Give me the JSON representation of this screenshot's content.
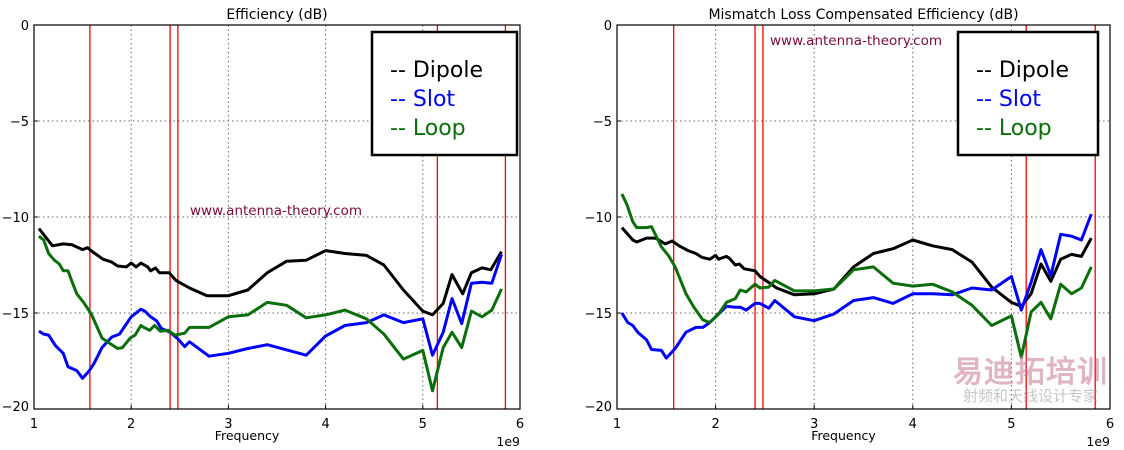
{
  "chart_data": [
    {
      "type": "line",
      "title": "Efficiency (dB)",
      "xlabel": "Frequency",
      "x_offset_label": "1e9",
      "ylabel": "",
      "xlim": [
        1,
        6
      ],
      "ylim": [
        -20,
        0
      ],
      "xticks": [
        "1",
        "2",
        "3",
        "4",
        "5",
        "6"
      ],
      "yticks": [
        "0",
        "−5",
        "−10",
        "−15",
        "−20"
      ],
      "grid": true,
      "legend_placement": "top-right",
      "annotation": "www.antenna-theory.com",
      "vertical_markers": [
        1.575,
        2.4,
        2.48,
        5.15,
        5.85
      ],
      "series": [
        {
          "name": "-- Dipole",
          "color": "#000000",
          "x": [
            1.05,
            1.19,
            1.3,
            1.39,
            1.5,
            1.55,
            1.6,
            1.71,
            1.8,
            1.86,
            1.95,
            2.0,
            2.05,
            2.1,
            2.17,
            2.2,
            2.25,
            2.29,
            2.39,
            2.46,
            2.6,
            2.78,
            3.0,
            3.2,
            3.4,
            3.6,
            3.8,
            4.0,
            4.2,
            4.42,
            4.6,
            4.8,
            5.0,
            5.1,
            5.21,
            5.3,
            5.41,
            5.5,
            5.61,
            5.7,
            5.81
          ],
          "y": [
            -10.6,
            -11.5,
            -11.4,
            -11.45,
            -11.7,
            -11.6,
            -11.8,
            -12.2,
            -12.35,
            -12.55,
            -12.6,
            -12.4,
            -12.6,
            -12.4,
            -12.6,
            -12.8,
            -12.65,
            -12.9,
            -12.9,
            -13.3,
            -13.7,
            -14.1,
            -14.1,
            -13.8,
            -12.9,
            -12.3,
            -12.25,
            -11.75,
            -11.9,
            -12.0,
            -12.5,
            -13.8,
            -14.9,
            -15.1,
            -14.5,
            -13.0,
            -14.0,
            -12.9,
            -12.65,
            -12.75,
            -11.8
          ]
        },
        {
          "name": "-- Slot",
          "color": "#0000ff",
          "x": [
            1.05,
            1.1,
            1.15,
            1.22,
            1.3,
            1.35,
            1.44,
            1.5,
            1.57,
            1.62,
            1.7,
            1.8,
            1.88,
            2.0,
            2.1,
            2.14,
            2.2,
            2.26,
            2.31,
            2.4,
            2.48,
            2.55,
            2.6,
            2.8,
            3.0,
            3.2,
            3.4,
            3.8,
            4.0,
            4.2,
            4.42,
            4.6,
            4.8,
            5.0,
            5.1,
            5.21,
            5.3,
            5.4,
            5.5,
            5.61,
            5.71,
            5.81
          ],
          "y": [
            -15.95,
            -16.1,
            -16.15,
            -16.7,
            -17.1,
            -17.8,
            -18.0,
            -18.4,
            -18.0,
            -17.6,
            -16.8,
            -16.25,
            -16.1,
            -15.2,
            -14.8,
            -14.9,
            -15.2,
            -15.4,
            -15.8,
            -16.0,
            -16.35,
            -16.75,
            -16.5,
            -17.25,
            -17.1,
            -16.85,
            -16.65,
            -17.2,
            -16.2,
            -15.65,
            -15.5,
            -15.1,
            -15.5,
            -15.3,
            -17.2,
            -16.0,
            -14.25,
            -15.55,
            -13.45,
            -13.4,
            -13.45,
            -11.95
          ]
        },
        {
          "name": "-- Loop",
          "color": "#0a6e0a",
          "x": [
            1.05,
            1.1,
            1.15,
            1.21,
            1.26,
            1.3,
            1.35,
            1.39,
            1.44,
            1.51,
            1.59,
            1.7,
            1.77,
            1.86,
            1.91,
            1.99,
            2.04,
            2.1,
            2.13,
            2.19,
            2.24,
            2.3,
            2.38,
            2.45,
            2.55,
            2.6,
            2.8,
            3.0,
            3.2,
            3.4,
            3.6,
            3.8,
            4.0,
            4.2,
            4.42,
            4.6,
            4.8,
            5.0,
            5.1,
            5.21,
            5.3,
            5.4,
            5.5,
            5.61,
            5.71,
            5.81
          ],
          "y": [
            -11.0,
            -11.2,
            -11.9,
            -12.25,
            -12.45,
            -12.8,
            -12.8,
            -13.35,
            -14.0,
            -14.45,
            -15.05,
            -16.3,
            -16.55,
            -16.85,
            -16.8,
            -16.3,
            -16.15,
            -15.65,
            -15.75,
            -15.9,
            -15.65,
            -15.95,
            -15.9,
            -16.15,
            -16.05,
            -15.75,
            -15.75,
            -15.2,
            -15.1,
            -14.45,
            -14.6,
            -15.25,
            -15.1,
            -14.85,
            -15.3,
            -16.1,
            -17.4,
            -16.95,
            -19.05,
            -16.8,
            -16.0,
            -16.8,
            -14.9,
            -15.2,
            -14.85,
            -13.75
          ]
        }
      ]
    },
    {
      "type": "line",
      "title": "Mismatch Loss Compensated Efficiency (dB)",
      "xlabel": "Frequency",
      "x_offset_label": "1e9",
      "ylabel": "",
      "xlim": [
        1,
        6
      ],
      "ylim": [
        -20,
        0
      ],
      "xticks": [
        "1",
        "2",
        "3",
        "4",
        "5",
        "6"
      ],
      "yticks": [
        "0",
        "−5",
        "−10",
        "−15",
        "−20"
      ],
      "grid": true,
      "legend_placement": "top-right",
      "annotation": "www.antenna-theory.com",
      "vertical_markers": [
        1.575,
        2.4,
        2.48,
        5.15,
        5.85
      ],
      "series": [
        {
          "name": "-- Dipole",
          "color": "#000000",
          "x": [
            1.05,
            1.16,
            1.2,
            1.3,
            1.39,
            1.49,
            1.56,
            1.63,
            1.72,
            1.8,
            1.86,
            1.94,
            2.0,
            2.03,
            2.11,
            2.14,
            2.2,
            2.24,
            2.29,
            2.4,
            2.45,
            2.62,
            2.8,
            3.0,
            3.2,
            3.4,
            3.6,
            3.8,
            4.0,
            4.2,
            4.4,
            4.6,
            4.8,
            5.0,
            5.1,
            5.2,
            5.3,
            5.4,
            5.5,
            5.61,
            5.71,
            5.81
          ],
          "y": [
            -10.55,
            -11.2,
            -11.3,
            -11.1,
            -11.1,
            -11.4,
            -11.25,
            -11.5,
            -11.75,
            -11.9,
            -12.1,
            -12.2,
            -12.0,
            -12.2,
            -12.05,
            -12.15,
            -12.5,
            -12.45,
            -12.7,
            -12.8,
            -13.1,
            -13.7,
            -14.05,
            -14.0,
            -13.75,
            -12.6,
            -11.9,
            -11.65,
            -11.2,
            -11.5,
            -11.7,
            -12.35,
            -13.65,
            -14.45,
            -14.65,
            -14.0,
            -12.45,
            -13.35,
            -12.2,
            -11.95,
            -12.05,
            -11.1
          ]
        },
        {
          "name": "-- Slot",
          "color": "#0000ff",
          "x": [
            1.05,
            1.11,
            1.16,
            1.21,
            1.3,
            1.35,
            1.45,
            1.5,
            1.59,
            1.7,
            1.8,
            1.87,
            1.94,
            2.01,
            2.11,
            2.2,
            2.25,
            2.31,
            2.4,
            2.45,
            2.54,
            2.6,
            2.8,
            3.0,
            3.2,
            3.4,
            3.6,
            3.8,
            4.0,
            4.2,
            4.4,
            4.6,
            4.8,
            5.0,
            5.1,
            5.2,
            5.3,
            5.4,
            5.5,
            5.61,
            5.71,
            5.81
          ],
          "y": [
            -15.0,
            -15.5,
            -15.65,
            -16.0,
            -16.4,
            -16.9,
            -16.95,
            -17.35,
            -16.85,
            -16.0,
            -15.75,
            -15.75,
            -15.5,
            -15.15,
            -14.65,
            -14.7,
            -14.7,
            -14.85,
            -14.5,
            -14.5,
            -14.75,
            -14.35,
            -15.2,
            -15.4,
            -15.05,
            -14.35,
            -14.2,
            -14.5,
            -14.0,
            -14.0,
            -14.05,
            -13.7,
            -13.8,
            -13.1,
            -14.85,
            -13.4,
            -11.7,
            -13.05,
            -10.9,
            -11.0,
            -11.2,
            -9.85
          ]
        },
        {
          "name": "-- Loop",
          "color": "#0a6e0a",
          "x": [
            1.05,
            1.1,
            1.16,
            1.2,
            1.3,
            1.35,
            1.45,
            1.52,
            1.59,
            1.7,
            1.78,
            1.87,
            1.94,
            2.03,
            2.11,
            2.2,
            2.25,
            2.31,
            2.4,
            2.45,
            2.54,
            2.6,
            2.8,
            3.0,
            3.2,
            3.4,
            3.6,
            3.8,
            4.0,
            4.2,
            4.4,
            4.6,
            4.8,
            5.0,
            5.1,
            5.2,
            5.3,
            5.4,
            5.5,
            5.61,
            5.71,
            5.81
          ],
          "y": [
            -8.8,
            -9.35,
            -10.25,
            -10.55,
            -10.55,
            -10.5,
            -11.55,
            -12.0,
            -12.6,
            -14.0,
            -14.7,
            -15.35,
            -15.5,
            -15.05,
            -14.45,
            -14.25,
            -13.8,
            -13.9,
            -13.5,
            -13.7,
            -13.65,
            -13.3,
            -13.85,
            -13.85,
            -13.75,
            -12.75,
            -12.6,
            -13.45,
            -13.6,
            -13.5,
            -13.9,
            -14.6,
            -15.65,
            -15.15,
            -17.3,
            -14.95,
            -14.45,
            -15.3,
            -13.5,
            -14.0,
            -13.7,
            -12.6
          ]
        }
      ]
    }
  ],
  "watermark": {
    "logo_text": "易迪拓培训",
    "tagline": "射频和天线设计专家"
  }
}
